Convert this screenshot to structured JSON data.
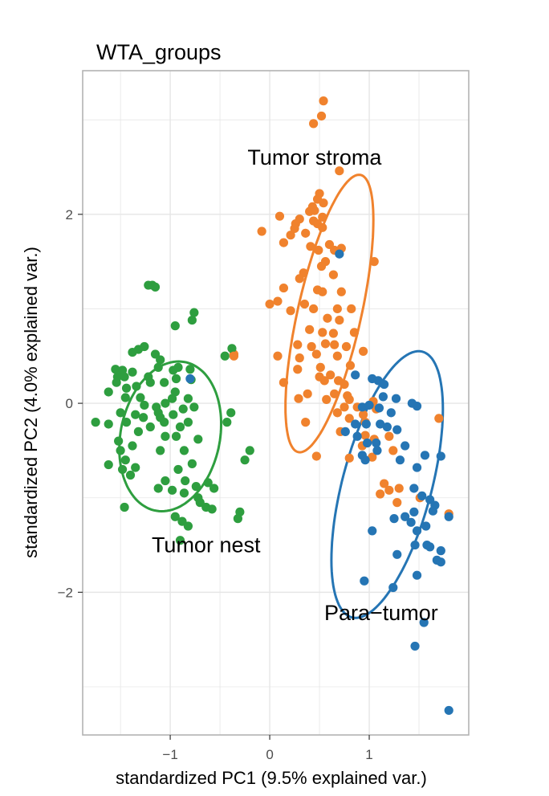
{
  "chart_data": {
    "type": "scatter",
    "title": "WTA_groups",
    "xlabel": "standardized PC1 (9.5% explained var.)",
    "ylabel": "standardized PC2 (4.0% explained var.)",
    "xlim": [
      -1.88,
      2.0
    ],
    "ylim": [
      -3.51,
      3.52
    ],
    "x_ticks": [
      -1,
      0,
      1
    ],
    "x_tick_labels": [
      "−1",
      "0",
      "1"
    ],
    "y_ticks": [
      -2,
      0,
      2
    ],
    "y_tick_labels": [
      "−2",
      "0",
      "2"
    ],
    "grid": true,
    "legend": "none",
    "series": [
      {
        "name": "Tumor stroma",
        "color": "#F0822D",
        "label_pos": [
          0.45,
          2.6
        ],
        "ellipse": {
          "cx": 0.6,
          "cy": 0.95,
          "rx": 0.32,
          "ry": 1.5,
          "angle_deg": -12
        },
        "points": [
          [
            0.54,
            3.2
          ],
          [
            0.52,
            3.04
          ],
          [
            0.44,
            2.96
          ],
          [
            0.7,
            2.46
          ],
          [
            0.5,
            2.22
          ],
          [
            0.48,
            2.16
          ],
          [
            0.54,
            2.12
          ],
          [
            0.43,
            2.08
          ],
          [
            0.4,
            2.03
          ],
          [
            0.45,
            2.04
          ],
          [
            0.53,
            1.97
          ],
          [
            0.44,
            1.93
          ],
          [
            0.48,
            1.9
          ],
          [
            0.1,
            1.98
          ],
          [
            0.3,
            1.95
          ],
          [
            0.26,
            1.9
          ],
          [
            0.53,
            1.86
          ],
          [
            -0.08,
            1.82
          ],
          [
            0.25,
            1.85
          ],
          [
            0.36,
            1.8
          ],
          [
            0.21,
            1.78
          ],
          [
            0.14,
            1.7
          ],
          [
            0.6,
            1.68
          ],
          [
            0.41,
            1.66
          ],
          [
            0.49,
            1.62
          ],
          [
            0.65,
            1.62
          ],
          [
            0.72,
            1.64
          ],
          [
            0.56,
            1.5
          ],
          [
            0.52,
            1.45
          ],
          [
            1.05,
            1.5
          ],
          [
            0.34,
            1.38
          ],
          [
            0.3,
            1.32
          ],
          [
            0.64,
            1.36
          ],
          [
            0.48,
            1.2
          ],
          [
            0.53,
            1.18
          ],
          [
            0.72,
            1.18
          ],
          [
            0.14,
            1.22
          ],
          [
            0.08,
            1.08
          ],
          [
            0.35,
            1.05
          ],
          [
            0.44,
            1.0
          ],
          [
            0.68,
            1.0
          ],
          [
            0.82,
            1.0
          ],
          [
            0.0,
            1.05
          ],
          [
            0.21,
            0.98
          ],
          [
            0.58,
            0.9
          ],
          [
            0.7,
            0.88
          ],
          [
            0.4,
            0.78
          ],
          [
            0.53,
            0.75
          ],
          [
            0.64,
            0.74
          ],
          [
            0.85,
            0.75
          ],
          [
            0.28,
            0.62
          ],
          [
            0.56,
            0.63
          ],
          [
            0.65,
            0.62
          ],
          [
            0.42,
            0.6
          ],
          [
            0.77,
            0.6
          ],
          [
            0.94,
            0.55
          ],
          [
            0.47,
            0.52
          ],
          [
            0.3,
            0.48
          ],
          [
            0.68,
            0.5
          ],
          [
            0.08,
            0.5
          ],
          [
            0.28,
            0.36
          ],
          [
            0.51,
            0.38
          ],
          [
            0.81,
            0.4
          ],
          [
            -0.36,
            0.52
          ],
          [
            0.61,
            0.3
          ],
          [
            0.5,
            0.28
          ],
          [
            0.55,
            0.24
          ],
          [
            0.69,
            0.24
          ],
          [
            0.75,
            0.2
          ],
          [
            0.14,
            0.22
          ],
          [
            0.38,
            0.1
          ],
          [
            0.65,
            0.1
          ],
          [
            0.78,
            0.08
          ],
          [
            0.8,
            0.04
          ],
          [
            0.29,
            0.05
          ],
          [
            0.57,
            0.04
          ],
          [
            0.75,
            -0.04
          ],
          [
            0.88,
            -0.04
          ],
          [
            1.04,
            0.02
          ],
          [
            1.07,
            -0.06
          ],
          [
            0.94,
            -0.12
          ],
          [
            0.8,
            -0.16
          ],
          [
            0.68,
            -0.1
          ],
          [
            0.96,
            -0.2
          ],
          [
            0.36,
            -0.2
          ],
          [
            0.71,
            -0.3
          ],
          [
            0.96,
            -0.34
          ],
          [
            0.93,
            -0.45
          ],
          [
            1.2,
            -0.35
          ],
          [
            1.24,
            -0.5
          ],
          [
            1.03,
            -0.57
          ],
          [
            0.47,
            -0.56
          ],
          [
            0.8,
            -0.58
          ],
          [
            1.05,
            -0.38
          ],
          [
            1.7,
            -0.16
          ],
          [
            1.15,
            -0.85
          ],
          [
            1.2,
            -0.92
          ],
          [
            1.3,
            -0.9
          ],
          [
            1.11,
            -0.96
          ],
          [
            1.28,
            -1.05
          ],
          [
            1.51,
            -1.0
          ],
          [
            1.8,
            -1.17
          ]
        ]
      },
      {
        "name": "Para−tumor",
        "color": "#2575B4",
        "label_pos": [
          1.12,
          -2.22
        ],
        "ellipse": {
          "cx": 1.18,
          "cy": -0.86,
          "rx": 0.45,
          "ry": 1.45,
          "angle_deg": -14
        },
        "points": [
          [
            0.7,
            1.58
          ],
          [
            0.86,
            0.3
          ],
          [
            1.03,
            0.26
          ],
          [
            1.09,
            0.24
          ],
          [
            1.15,
            0.2
          ],
          [
            1.27,
            0.05
          ],
          [
            1.14,
            0.07
          ],
          [
            1.43,
            0.0
          ],
          [
            1.48,
            -0.03
          ],
          [
            0.93,
            -0.04
          ],
          [
            1.0,
            -0.02
          ],
          [
            1.1,
            -0.05
          ],
          [
            1.22,
            -0.1
          ],
          [
            0.86,
            -0.22
          ],
          [
            0.97,
            -0.22
          ],
          [
            1.11,
            -0.22
          ],
          [
            1.18,
            -0.25
          ],
          [
            1.28,
            -0.28
          ],
          [
            0.76,
            -0.3
          ],
          [
            0.88,
            -0.35
          ],
          [
            0.98,
            -0.42
          ],
          [
            1.07,
            -0.42
          ],
          [
            1.36,
            -0.45
          ],
          [
            0.93,
            -0.55
          ],
          [
            1.08,
            -0.5
          ],
          [
            1.56,
            -0.55
          ],
          [
            0.96,
            -0.6
          ],
          [
            1.31,
            -0.6
          ],
          [
            1.48,
            -0.68
          ],
          [
            1.72,
            -0.56
          ],
          [
            1.45,
            -0.9
          ],
          [
            1.53,
            -0.98
          ],
          [
            1.61,
            -1.02
          ],
          [
            1.66,
            -1.08
          ],
          [
            1.45,
            -1.15
          ],
          [
            1.64,
            -1.14
          ],
          [
            1.36,
            -1.2
          ],
          [
            1.25,
            -1.22
          ],
          [
            1.8,
            -1.2
          ],
          [
            1.42,
            -1.26
          ],
          [
            1.57,
            -1.3
          ],
          [
            1.48,
            -1.35
          ],
          [
            1.03,
            -1.35
          ],
          [
            1.58,
            -1.5
          ],
          [
            1.46,
            -1.5
          ],
          [
            1.61,
            -1.52
          ],
          [
            1.72,
            -1.56
          ],
          [
            1.28,
            -1.6
          ],
          [
            1.68,
            -1.66
          ],
          [
            1.72,
            -1.68
          ],
          [
            1.48,
            -1.82
          ],
          [
            0.95,
            -1.88
          ],
          [
            1.24,
            -1.95
          ],
          [
            1.55,
            -2.32
          ],
          [
            1.46,
            -2.57
          ],
          [
            1.8,
            -3.25
          ]
        ]
      },
      {
        "name": "Tumor nest",
        "color": "#2E9E3F",
        "label_pos": [
          -0.64,
          -1.5
        ],
        "ellipse": {
          "cx": -1.0,
          "cy": -0.35,
          "rx": 0.5,
          "ry": 0.8,
          "angle_deg": -10
        },
        "points": [
          [
            -1.22,
            1.25
          ],
          [
            -1.18,
            1.25
          ],
          [
            -1.15,
            1.23
          ],
          [
            -0.76,
            0.96
          ],
          [
            -0.78,
            0.88
          ],
          [
            -0.95,
            0.82
          ],
          [
            -0.38,
            0.58
          ],
          [
            -0.45,
            0.5
          ],
          [
            -1.26,
            0.6
          ],
          [
            -1.32,
            0.57
          ],
          [
            -1.38,
            0.54
          ],
          [
            -1.15,
            0.52
          ],
          [
            -1.1,
            0.46
          ],
          [
            -1.55,
            0.36
          ],
          [
            -1.48,
            0.35
          ],
          [
            -1.38,
            0.33
          ],
          [
            -1.53,
            0.28
          ],
          [
            -1.46,
            0.28
          ],
          [
            -1.12,
            0.38
          ],
          [
            -0.97,
            0.35
          ],
          [
            -0.92,
            0.38
          ],
          [
            -0.8,
            0.36
          ],
          [
            -1.22,
            0.28
          ],
          [
            -0.94,
            0.26
          ],
          [
            -1.06,
            0.22
          ],
          [
            -1.2,
            0.22
          ],
          [
            -1.54,
            0.22
          ],
          [
            -1.34,
            0.18
          ],
          [
            -1.44,
            0.16
          ],
          [
            -1.62,
            0.12
          ],
          [
            -0.95,
            0.12
          ],
          [
            -0.98,
            0.05
          ],
          [
            -0.82,
            0.05
          ],
          [
            -1.45,
            0.06
          ],
          [
            -1.3,
            0.06
          ],
          [
            -1.05,
            0.0
          ],
          [
            -1.14,
            -0.04
          ],
          [
            -1.26,
            -0.02
          ],
          [
            -0.76,
            -0.04
          ],
          [
            -0.87,
            -0.06
          ],
          [
            -1.5,
            -0.1
          ],
          [
            -1.12,
            -0.1
          ],
          [
            -1.35,
            -0.12
          ],
          [
            -0.97,
            -0.12
          ],
          [
            -1.44,
            -0.2
          ],
          [
            -1.27,
            -0.15
          ],
          [
            -0.39,
            -0.1
          ],
          [
            -1.1,
            -0.15
          ],
          [
            -1.06,
            -0.2
          ],
          [
            -0.82,
            -0.2
          ],
          [
            -1.62,
            -0.22
          ],
          [
            -1.75,
            -0.2
          ],
          [
            -1.2,
            -0.25
          ],
          [
            -0.9,
            -0.25
          ],
          [
            -1.32,
            -0.3
          ],
          [
            -0.43,
            -0.2
          ],
          [
            -1.52,
            -0.4
          ],
          [
            -1.05,
            -0.35
          ],
          [
            -0.94,
            -0.35
          ],
          [
            -0.72,
            -0.38
          ],
          [
            -1.38,
            -0.45
          ],
          [
            -1.5,
            -0.5
          ],
          [
            -0.2,
            -0.5
          ],
          [
            -1.1,
            -0.5
          ],
          [
            -0.86,
            -0.5
          ],
          [
            -0.25,
            -0.6
          ],
          [
            -1.45,
            -0.6
          ],
          [
            -1.62,
            -0.65
          ],
          [
            -0.78,
            -0.64
          ],
          [
            -1.35,
            -0.68
          ],
          [
            -1.48,
            -0.7
          ],
          [
            -0.92,
            -0.7
          ],
          [
            -1.4,
            -0.76
          ],
          [
            -0.85,
            -0.82
          ],
          [
            -1.05,
            -0.82
          ],
          [
            -0.62,
            -0.84
          ],
          [
            -0.74,
            -0.88
          ],
          [
            -1.12,
            -0.9
          ],
          [
            -0.98,
            -0.92
          ],
          [
            -0.86,
            -0.95
          ],
          [
            -0.56,
            -0.9
          ],
          [
            -0.72,
            -1.0
          ],
          [
            -0.7,
            -1.05
          ],
          [
            -0.64,
            -1.1
          ],
          [
            -1.46,
            -1.1
          ],
          [
            -0.58,
            -1.12
          ],
          [
            -0.95,
            -1.2
          ],
          [
            -0.3,
            -1.15
          ],
          [
            -0.88,
            -1.25
          ],
          [
            -0.32,
            -1.22
          ],
          [
            -0.82,
            -1.3
          ],
          [
            -0.9,
            -1.45
          ],
          [
            -0.79,
            0.25
          ]
        ]
      }
    ],
    "stray_points": [
      {
        "series": "Tumor stroma",
        "points": [
          [
            -0.36,
            0.5
          ]
        ]
      },
      {
        "series": "Para−tumor",
        "points": [
          [
            -0.8,
            0.26
          ]
        ]
      }
    ]
  }
}
